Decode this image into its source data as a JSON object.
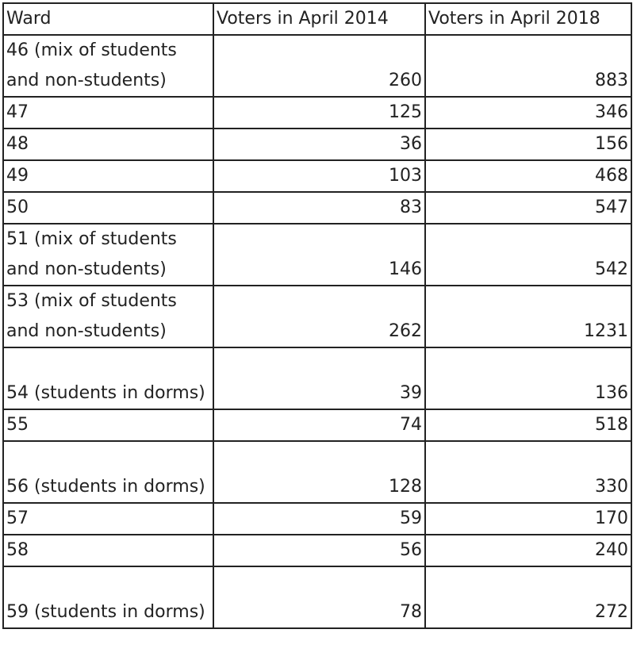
{
  "table": {
    "headers": [
      "Ward",
      "Voters in April 2014",
      "Voters in April 2018"
    ],
    "rows": [
      {
        "ward": "46 (mix of students and non-students)",
        "v2014": "260",
        "v2018": "883",
        "tall": true
      },
      {
        "ward": "47",
        "v2014": "125",
        "v2018": "346",
        "tall": false
      },
      {
        "ward": "48",
        "v2014": "36",
        "v2018": "156",
        "tall": false
      },
      {
        "ward": "49",
        "v2014": "103",
        "v2018": "468",
        "tall": false
      },
      {
        "ward": "50",
        "v2014": "83",
        "v2018": "547",
        "tall": false
      },
      {
        "ward": "51 (mix of students and non-students)",
        "v2014": "146",
        "v2018": "542",
        "tall": true
      },
      {
        "ward": "53 (mix of students and non-students)",
        "v2014": "262",
        "v2018": "1231",
        "tall": true
      },
      {
        "ward": "54 (students in dorms)",
        "v2014": "39",
        "v2018": "136",
        "tall": true
      },
      {
        "ward": "55",
        "v2014": "74",
        "v2018": "518",
        "tall": false
      },
      {
        "ward": "56 (students in dorms)",
        "v2014": "128",
        "v2018": "330",
        "tall": true
      },
      {
        "ward": "57",
        "v2014": "59",
        "v2018": "170",
        "tall": false
      },
      {
        "ward": "58",
        "v2014": "56",
        "v2018": "240",
        "tall": false
      },
      {
        "ward": "59 (students in dorms)",
        "v2014": "78",
        "v2018": "272",
        "tall": true
      }
    ]
  }
}
